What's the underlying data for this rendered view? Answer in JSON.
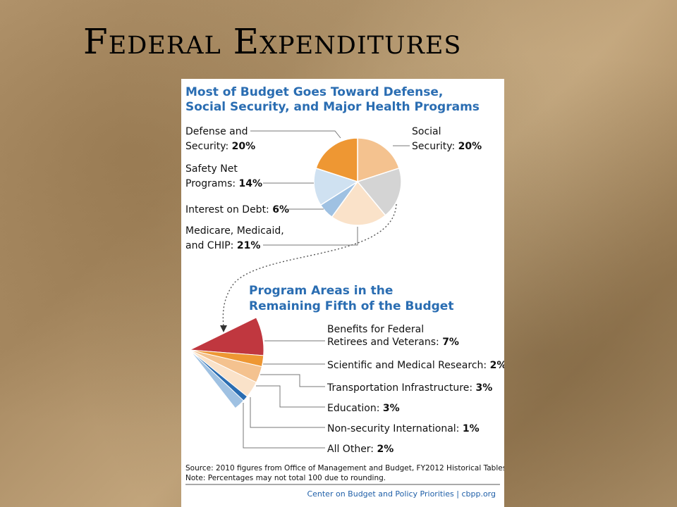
{
  "slide": {
    "title": "Federal Expenditures"
  },
  "chart_data": [
    {
      "type": "pie",
      "title_lines": [
        "Most of Budget Goes Toward Defense,",
        "Social Security, and Major Health Programs"
      ],
      "slices": [
        {
          "key": "ss",
          "label_lines": [
            "Social",
            "Security:"
          ],
          "value": 20,
          "value_text": "20%",
          "color": "#f4c28f"
        },
        {
          "key": "rem",
          "label_lines": [],
          "value": 19,
          "color": "#d4d4d4"
        },
        {
          "key": "med",
          "label_lines": [
            "Medicare, Medicaid,",
            "and CHIP:"
          ],
          "value": 21,
          "value_text": "21%",
          "color": "#fae2c9"
        },
        {
          "key": "int",
          "label_lines": [
            "Interest on Debt:"
          ],
          "value": 6,
          "value_text": "6%",
          "color": "#9fc1e2"
        },
        {
          "key": "sn",
          "label_lines": [
            "Safety Net",
            "Programs:"
          ],
          "value": 14,
          "value_text": "14%",
          "color": "#cfe1f1"
        },
        {
          "key": "def",
          "label_lines": [
            "Defense and",
            "Security:"
          ],
          "value": 20,
          "value_text": "20%",
          "color": "#ee9733"
        }
      ]
    },
    {
      "type": "pie",
      "title_lines": [
        "Program Areas in the",
        "Remaining Fifth of the Budget"
      ],
      "slices": [
        {
          "key": "ret",
          "label_lines": [
            "Benefits for Federal",
            "Retirees and Veterans:"
          ],
          "value": 7,
          "value_text": "7%",
          "color": "#c0373f"
        },
        {
          "key": "sci",
          "label_lines": [
            "Scientific and Medical Research:"
          ],
          "value": 2,
          "value_text": "2%",
          "color": "#ee9733"
        },
        {
          "key": "tra",
          "label_lines": [
            "Transportation Infrastructure:"
          ],
          "value": 3,
          "value_text": "3%",
          "color": "#f4c28f"
        },
        {
          "key": "edu",
          "label_lines": [
            "Education:"
          ],
          "value": 3,
          "value_text": "3%",
          "color": "#fae2c9"
        },
        {
          "key": "nsi",
          "label_lines": [
            "Non-security International:"
          ],
          "value": 1,
          "value_text": "1%",
          "color": "#2a6db2"
        },
        {
          "key": "oth",
          "label_lines": [
            "All Other:"
          ],
          "value": 2,
          "value_text": "2%",
          "color": "#9fc1e2"
        }
      ]
    }
  ],
  "notes": {
    "source": "Source: 2010 figures from Office of Management and Budget, FY2012 Historical Tables.",
    "rounding": "Note: Percentages may not total 100 due to rounding.",
    "credit": "Center on Budget and Policy Priorities | cbpp.org"
  }
}
